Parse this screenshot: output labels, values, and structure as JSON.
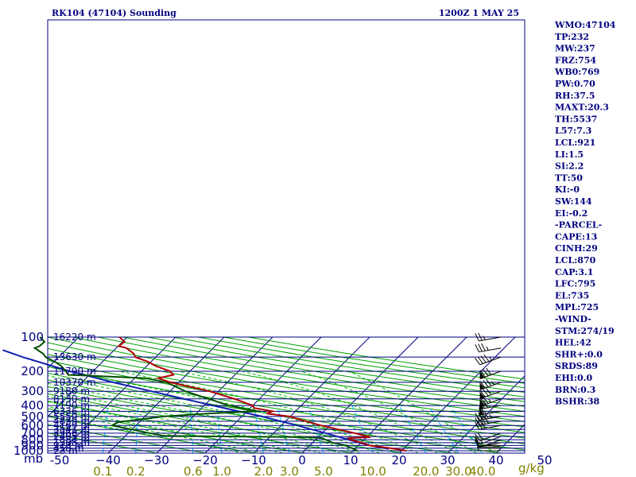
{
  "header": {
    "station": "RK104 (47104) Sounding",
    "time": "1200Z  1 MAY 25"
  },
  "chart_data": {
    "type": "skew-t",
    "pressure_labels": [
      {
        "p": 100,
        "text": "100"
      },
      {
        "p": 200,
        "text": "200"
      },
      {
        "p": 300,
        "text": "300"
      },
      {
        "p": 400,
        "text": "400"
      },
      {
        "p": 500,
        "text": "500"
      },
      {
        "p": 600,
        "text": "600"
      },
      {
        "p": 700,
        "text": "700"
      },
      {
        "p": 800,
        "text": "800"
      },
      {
        "p": 900,
        "text": "900"
      },
      {
        "p": 1000,
        "text": "1000"
      }
    ],
    "unit_label": "mb",
    "temp_ticks": [
      {
        "t": -50,
        "text": "-50"
      },
      {
        "t": -40,
        "text": "−40"
      },
      {
        "t": -30,
        "text": "−30"
      },
      {
        "t": -20,
        "text": "−20"
      },
      {
        "t": -10,
        "text": "−10"
      },
      {
        "t": 0,
        "text": "0"
      },
      {
        "t": 10,
        "text": "10"
      },
      {
        "t": 20,
        "text": "20"
      },
      {
        "t": 30,
        "text": "30"
      },
      {
        "t": 40,
        "text": "40"
      },
      {
        "t": 50,
        "text": "50"
      }
    ],
    "mixing_ratio_labels": [
      "0.1",
      "0.2",
      "0.6",
      "1.0",
      "2.0",
      "3.0",
      "5.0",
      "10.0",
      "20.0",
      "30.0",
      "40.0"
    ],
    "mixing_ratio_unit": "g/kg",
    "height_labels": [
      {
        "p": 100,
        "text": "16220 m"
      },
      {
        "p": 150,
        "text": "13630 m"
      },
      {
        "p": 200,
        "text": "11790 m"
      },
      {
        "p": 250,
        "text": "10370 m"
      },
      {
        "p": 300,
        "text": "9180 m"
      },
      {
        "p": 350,
        "text": "8130 m"
      },
      {
        "p": 400,
        "text": "7190 m"
      },
      {
        "p": 450,
        "text": "6336 m"
      },
      {
        "p": 500,
        "text": "5550 m"
      },
      {
        "p": 550,
        "text": "4839 m"
      },
      {
        "p": 600,
        "text": "4169 m"
      },
      {
        "p": 650,
        "text": "3541 m"
      },
      {
        "p": 700,
        "text": "2960 m"
      },
      {
        "p": 750,
        "text": "2405 m"
      },
      {
        "p": 800,
        "text": "1881 m"
      },
      {
        "p": 850,
        "text": "1388 m"
      },
      {
        "p": 900,
        "text": "913 m"
      },
      {
        "p": 950,
        "text": "458 m"
      },
      {
        "p": 1000,
        "text": "23 m"
      }
    ],
    "temperature": [
      {
        "p": 1000,
        "t": 21.0
      },
      {
        "p": 950,
        "t": 17.2
      },
      {
        "p": 900,
        "t": 12.4
      },
      {
        "p": 850,
        "t": 10.1
      },
      {
        "p": 800,
        "t": 7.3
      },
      {
        "p": 775,
        "t": 6.5
      },
      {
        "p": 760,
        "t": 10.8
      },
      {
        "p": 700,
        "t": 6.7
      },
      {
        "p": 600,
        "t": -1.8
      },
      {
        "p": 500,
        "t": -10.2
      },
      {
        "p": 470,
        "t": -15.5
      },
      {
        "p": 450,
        "t": -14.7
      },
      {
        "p": 420,
        "t": -19.3
      },
      {
        "p": 400,
        "t": -20.0
      },
      {
        "p": 350,
        "t": -25.1
      },
      {
        "p": 300,
        "t": -31.8
      },
      {
        "p": 250,
        "t": -41.8
      },
      {
        "p": 230,
        "t": -45.1
      },
      {
        "p": 215,
        "t": -42.7
      },
      {
        "p": 200,
        "t": -44.1
      },
      {
        "p": 180,
        "t": -48.1
      },
      {
        "p": 165,
        "t": -50.6
      },
      {
        "p": 150,
        "t": -54.2
      },
      {
        "p": 140,
        "t": -55.2
      },
      {
        "p": 125,
        "t": -57.9
      },
      {
        "p": 120,
        "t": -59.9
      },
      {
        "p": 110,
        "t": -59.6
      },
      {
        "p": 100,
        "t": -61.6
      }
    ],
    "dewpoint": [
      {
        "p": 1000,
        "t": 11.0
      },
      {
        "p": 950,
        "t": 9.3
      },
      {
        "p": 900,
        "t": 7.4
      },
      {
        "p": 850,
        "t": 4.2
      },
      {
        "p": 775,
        "t": 1.0
      },
      {
        "p": 760,
        "t": -2.4
      },
      {
        "p": 740,
        "t": -32.0
      },
      {
        "p": 700,
        "t": -35.6
      },
      {
        "p": 600,
        "t": -44.9
      },
      {
        "p": 560,
        "t": -44.3
      },
      {
        "p": 500,
        "t": -36.2
      },
      {
        "p": 470,
        "t": -27.5
      },
      {
        "p": 450,
        "t": -17.8
      },
      {
        "p": 400,
        "t": -24.9
      },
      {
        "p": 300,
        "t": -36.8
      },
      {
        "p": 250,
        "t": -42.6
      },
      {
        "p": 230,
        "t": -47.6
      },
      {
        "p": 215,
        "t": -64.4
      },
      {
        "p": 200,
        "t": -65.6
      },
      {
        "p": 180,
        "t": -67.6
      },
      {
        "p": 165,
        "t": -69.8
      },
      {
        "p": 150,
        "t": -72.7
      },
      {
        "p": 140,
        "t": -73.9
      },
      {
        "p": 125,
        "t": -76.8
      },
      {
        "p": 120,
        "t": -76.2
      },
      {
        "p": 110,
        "t": -76.1
      },
      {
        "p": 100,
        "t": -78.0
      }
    ],
    "parcel": [
      {
        "p": 965,
        "t": 17.0
      },
      {
        "p": 900,
        "t": 12.5
      },
      {
        "p": 870,
        "t": 10.7
      },
      {
        "p": 795,
        "t": 6.5
      },
      {
        "p": 700,
        "t": 0.7
      },
      {
        "p": 600,
        "t": -6.7
      },
      {
        "p": 500,
        "t": -15.8
      },
      {
        "p": 450,
        "t": -21.7
      },
      {
        "p": 400,
        "t": -28.2
      },
      {
        "p": 300,
        "t": -43.8
      },
      {
        "p": 250,
        "t": -53.6
      },
      {
        "p": 200,
        "t": -64.8
      },
      {
        "p": 150,
        "t": -77.4
      },
      {
        "p": 130,
        "t": -83.0
      }
    ],
    "wind_levels": [
      {
        "p": 1000,
        "dir": 270,
        "kt": 5
      },
      {
        "p": 950,
        "dir": 270,
        "kt": 5
      },
      {
        "p": 925,
        "dir": 270,
        "kt": 5
      },
      {
        "p": 900,
        "dir": 270,
        "kt": 10
      },
      {
        "p": 850,
        "dir": 260,
        "kt": 10
      },
      {
        "p": 800,
        "dir": 250,
        "kt": 10
      },
      {
        "p": 750,
        "dir": 250,
        "kt": 15
      },
      {
        "p": 700,
        "dir": 250,
        "kt": 20
      },
      {
        "p": 600,
        "dir": 260,
        "kt": 30
      },
      {
        "p": 550,
        "dir": 260,
        "kt": 40
      },
      {
        "p": 500,
        "dir": 260,
        "kt": 45
      },
      {
        "p": 450,
        "dir": 260,
        "kt": 60
      },
      {
        "p": 400,
        "dir": 260,
        "kt": 70
      },
      {
        "p": 350,
        "dir": 250,
        "kt": 75
      },
      {
        "p": 300,
        "dir": 250,
        "kt": 80
      },
      {
        "p": 250,
        "dir": 250,
        "kt": 85
      },
      {
        "p": 200,
        "dir": 250,
        "kt": 80
      },
      {
        "p": 150,
        "dir": 250,
        "kt": 45
      },
      {
        "p": 125,
        "dir": 260,
        "kt": 35
      },
      {
        "p": 100,
        "dir": 260,
        "kt": 25
      }
    ]
  },
  "indices": [
    "WMO:47104",
    "TP:232",
    "MW:237",
    "FRZ:754",
    "WB0:769",
    "PW:0.70",
    "RH:37.5",
    "MAXT:20.3",
    "TH:5537",
    "L57:7.3",
    "LCL:921",
    "LI:1.5",
    "SI:2.2",
    "TT:50",
    "KI:-0",
    "SW:144",
    "EI:-0.2",
    "-PARCEL-",
    "CAPE:13",
    "CINH:29",
    "LCL:870",
    "CAP:3.1",
    "LFC:795",
    "EL:735",
    "MPL:725",
    "-WIND-",
    "STM:274/19",
    "HEL:42",
    "SHR+:0.0",
    "SRDS:89",
    "EHI:0.0",
    "BRN:0.3",
    "BSHR:38"
  ],
  "colors": {
    "background": "#ffffff",
    "text": "#000080",
    "isobar": "#000080",
    "isotherm": "#000080",
    "dry_adiabat": "#00a000",
    "moist_adiabat": "#00c000",
    "mixing_ratio": "#00c0ff",
    "temperature": "#b00000",
    "dewpoint": "#005000",
    "parcel": "#1020b0",
    "wind_barb": "#000000",
    "mixing_label": "#808000"
  }
}
